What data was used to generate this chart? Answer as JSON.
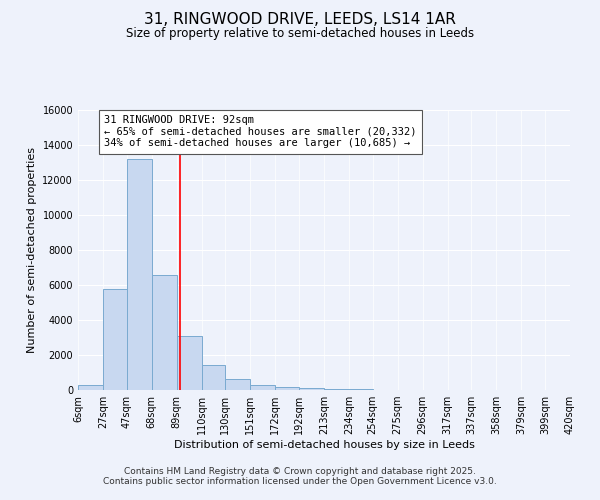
{
  "title": "31, RINGWOOD DRIVE, LEEDS, LS14 1AR",
  "subtitle": "Size of property relative to semi-detached houses in Leeds",
  "xlabel": "Distribution of semi-detached houses by size in Leeds",
  "ylabel": "Number of semi-detached properties",
  "bar_edges": [
    6,
    27,
    47,
    68,
    89,
    110,
    130,
    151,
    172,
    192,
    213,
    234,
    254,
    275,
    296,
    317,
    337,
    358,
    379,
    399,
    420
  ],
  "bar_heights": [
    300,
    5800,
    13200,
    6600,
    3100,
    1450,
    620,
    280,
    200,
    100,
    50,
    30,
    10,
    5,
    0,
    0,
    0,
    0,
    0,
    0
  ],
  "bar_color": "#c8d8f0",
  "bar_edge_color": "#7aaad0",
  "property_line_x": 92,
  "property_line_color": "red",
  "annotation_text": "31 RINGWOOD DRIVE: 92sqm\n← 65% of semi-detached houses are smaller (20,332)\n34% of semi-detached houses are larger (10,685) →",
  "annotation_box_color": "white",
  "annotation_box_edgecolor": "#555555",
  "ylim": [
    0,
    16000
  ],
  "yticks": [
    0,
    2000,
    4000,
    6000,
    8000,
    10000,
    12000,
    14000,
    16000
  ],
  "tick_labels": [
    "6sqm",
    "27sqm",
    "47sqm",
    "68sqm",
    "89sqm",
    "110sqm",
    "130sqm",
    "151sqm",
    "172sqm",
    "192sqm",
    "213sqm",
    "234sqm",
    "254sqm",
    "275sqm",
    "296sqm",
    "317sqm",
    "337sqm",
    "358sqm",
    "379sqm",
    "399sqm",
    "420sqm"
  ],
  "footnote1": "Contains HM Land Registry data © Crown copyright and database right 2025.",
  "footnote2": "Contains public sector information licensed under the Open Government Licence v3.0.",
  "background_color": "#eef2fb",
  "grid_color": "white",
  "title_fontsize": 11,
  "subtitle_fontsize": 8.5,
  "xlabel_fontsize": 8,
  "ylabel_fontsize": 8,
  "tick_fontsize": 7,
  "annotation_fontsize": 7.5,
  "footnote_fontsize": 6.5
}
